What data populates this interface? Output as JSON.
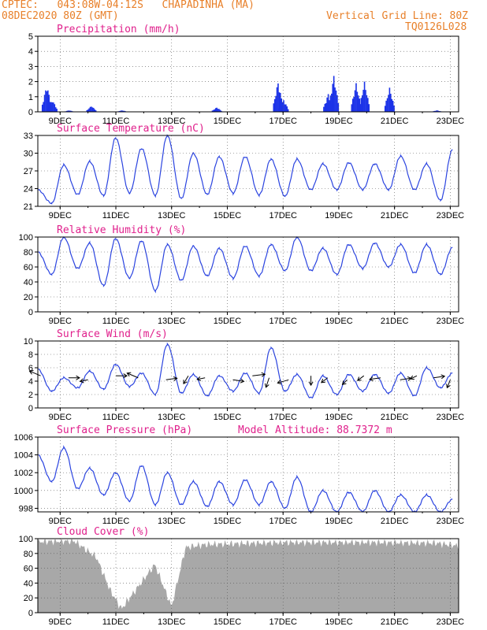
{
  "header": {
    "line1": "CPTEC:   043:08W-04:12S   CHAPADINHA (MA)",
    "line2": "08DEC2020 80Z (GMT)",
    "grid_note": "Vertical Grid Line: 80Z",
    "code": "TQ0126L028"
  },
  "x_ticks": [
    "9DEC",
    "11DEC",
    "13DEC",
    "15DEC",
    "17DEC",
    "19DEC",
    "21DEC",
    "23DEC"
  ],
  "colors": {
    "line": "#2b44e0",
    "bar": "#1c33e8",
    "cloud": "#a8a8a8",
    "title": "#e0208c",
    "header": "#e8802a"
  },
  "chart_data": [
    {
      "type": "bar",
      "title": "Precipitation (mm/h)",
      "ylim": [
        0,
        5
      ],
      "yticks": [
        0,
        1,
        2,
        3,
        4,
        5
      ],
      "x_range_days": [
        8.2,
        23.3
      ],
      "events": [
        {
          "day": 8.5,
          "value": 1.8
        },
        {
          "day": 8.7,
          "value": 0.8
        },
        {
          "day": 9.3,
          "value": 0.1
        },
        {
          "day": 10.1,
          "value": 0.4
        },
        {
          "day": 11.2,
          "value": 0.1
        },
        {
          "day": 14.6,
          "value": 0.3
        },
        {
          "day": 16.8,
          "value": 2.0
        },
        {
          "day": 17.0,
          "value": 0.8
        },
        {
          "day": 18.6,
          "value": 1.2
        },
        {
          "day": 18.8,
          "value": 2.4
        },
        {
          "day": 19.6,
          "value": 1.9
        },
        {
          "day": 19.9,
          "value": 2.0
        },
        {
          "day": 20.8,
          "value": 1.6
        },
        {
          "day": 22.5,
          "value": 0.1
        }
      ],
      "grid": true
    },
    {
      "type": "line",
      "title": "Surface Temperature (nC)",
      "ylim": [
        21,
        33
      ],
      "yticks": [
        21,
        24,
        27,
        30,
        33
      ],
      "peaks": [
        23.8,
        28.0,
        28.6,
        32.6,
        30.8,
        33.0,
        30.0,
        29.4,
        29.4,
        29.0,
        29.0,
        28.2,
        28.4,
        28.2,
        29.5,
        28.2,
        30.6
      ],
      "troughs": [
        21.5,
        23.0,
        22.8,
        23.2,
        22.8,
        22.3,
        23.0,
        23.2,
        22.9,
        22.7,
        23.8,
        23.8,
        23.8,
        23.8,
        23.8,
        22.0
      ],
      "grid": true
    },
    {
      "type": "line",
      "title": "Relative Humidity (%)",
      "ylim": [
        0,
        100
      ],
      "yticks": [
        0,
        20,
        40,
        60,
        80,
        100
      ],
      "peaks": [
        80,
        100,
        92,
        98,
        95,
        90,
        88,
        85,
        88,
        90,
        100,
        85,
        90,
        92,
        90,
        90,
        86
      ],
      "troughs": [
        50,
        58,
        35,
        45,
        28,
        42,
        48,
        45,
        48,
        55,
        55,
        50,
        58,
        60,
        52,
        50
      ],
      "grid": true
    },
    {
      "type": "line",
      "title": "Surface Wind (m/s)",
      "ylim": [
        0,
        10
      ],
      "yticks": [
        0,
        2,
        4,
        6,
        8,
        10
      ],
      "peaks": [
        5.8,
        4.5,
        5.5,
        6.5,
        5.2,
        9.5,
        5.0,
        4.8,
        5.2,
        9.0,
        5.0,
        4.8,
        5.0,
        5.0,
        5.2,
        6.0,
        5.2
      ],
      "troughs": [
        2.5,
        3.0,
        2.8,
        3.2,
        2.0,
        2.2,
        1.8,
        2.5,
        2.2,
        2.5,
        1.5,
        2.0,
        2.5,
        2.2,
        1.8,
        3.0
      ],
      "arrows_present": true,
      "grid": true
    },
    {
      "type": "line",
      "title": "Surface Pressure (hPa)",
      "annotation": "Model Altitude: 88.7372 m",
      "ylim": [
        997.6,
        1006
      ],
      "yticks": [
        998,
        1000,
        1002,
        1004,
        1006
      ],
      "peaks": [
        1004.0,
        1004.8,
        1002.5,
        1002.0,
        1002.8,
        1002.0,
        1001.0,
        1001.0,
        1001.2,
        1001.0,
        1001.5,
        1000.0,
        999.8,
        1000.0,
        999.5,
        999.5,
        999.0
      ],
      "troughs": [
        1001.0,
        1000.2,
        999.5,
        998.8,
        998.4,
        998.4,
        998.2,
        998.4,
        998.4,
        998.0,
        997.6,
        997.6,
        997.6,
        997.6,
        997.6,
        997.6
      ],
      "grid": true
    },
    {
      "type": "area",
      "title": "Cloud Cover (%)",
      "ylim": [
        0,
        100
      ],
      "yticks": [
        0,
        20,
        40,
        60,
        80,
        100
      ],
      "segments_days": [
        8.2,
        9.5,
        10.3,
        10.8,
        11.2,
        11.9,
        12.4,
        13.0,
        13.5,
        14.2,
        17.0,
        20.0,
        22.5,
        23.3
      ],
      "segments_values": [
        96,
        97,
        75,
        30,
        5,
        40,
        65,
        8,
        88,
        92,
        95,
        95,
        94,
        90
      ],
      "grid": true
    }
  ]
}
